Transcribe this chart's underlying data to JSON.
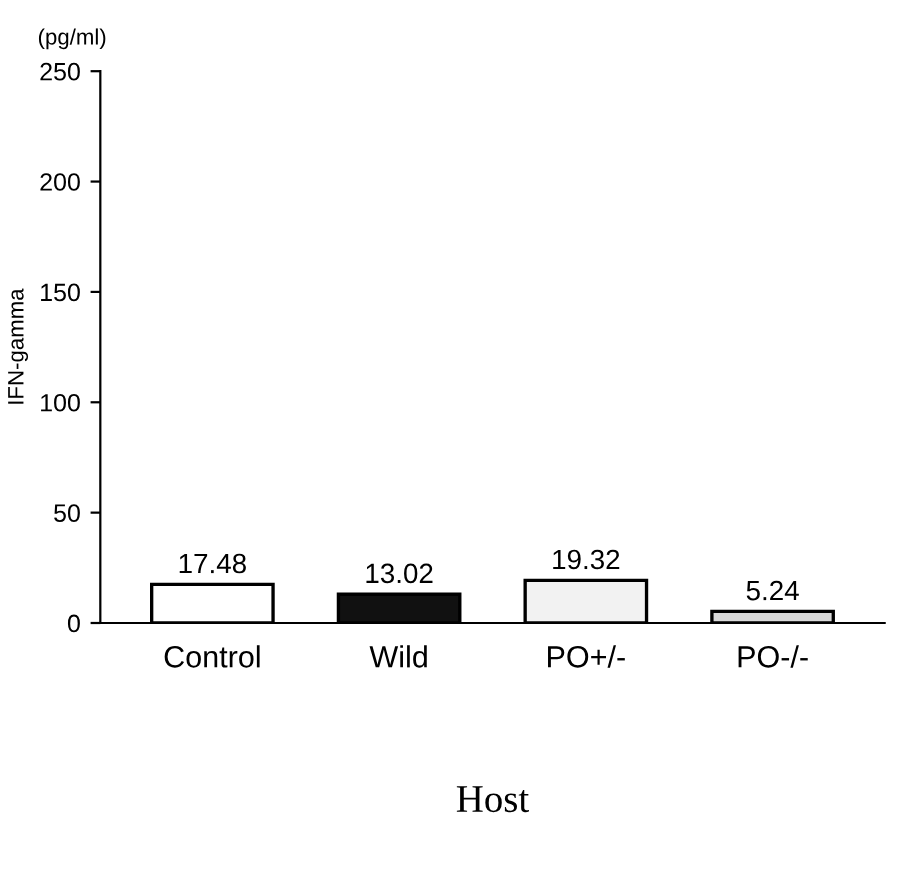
{
  "chart_data": {
    "type": "bar",
    "xlabel": "Host",
    "ylabel": "IFN-gamma",
    "annotations": [
      "(pg/ml)"
    ],
    "categories": [
      "Control",
      "Wild",
      "PO+/-",
      "PO-/-"
    ],
    "values": [
      17.48,
      13.02,
      19.32,
      5.24
    ],
    "colors": [
      "#ffffff",
      "#111111",
      "#f2f2f2",
      "#d9d9d9"
    ],
    "ylim": [
      0,
      250
    ],
    "yticks": [
      0,
      50,
      100,
      150,
      200,
      250
    ],
    "data_labels": true,
    "grid": false,
    "legend": false
  }
}
